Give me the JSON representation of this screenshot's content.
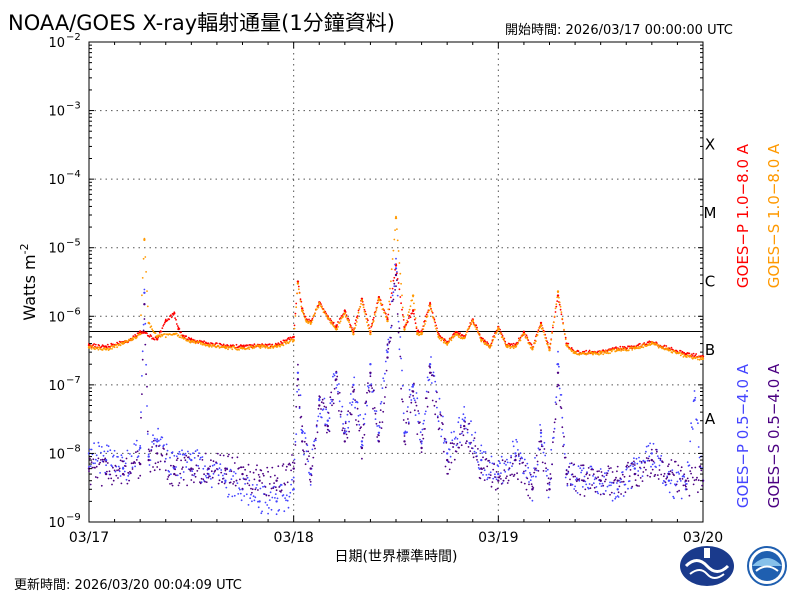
{
  "header": {
    "title": "NOAA/GOES X-ray輻射通量(1分鐘資料)",
    "start_time": "開始時間:  2026/03/17 00:00:00 UTC"
  },
  "footer": {
    "updated": "更新時間:  2026/03/20 00:04:09 UTC"
  },
  "logos": [
    {
      "name": "cwa-logo",
      "color": "#1a3a8c"
    },
    {
      "name": "noaa-logo",
      "color": "#1f5fb0"
    }
  ],
  "chart_data": {
    "type": "scatter",
    "xlabel": "日期(世界標準時間)",
    "ylabel": "Watts m",
    "ylabel_sup": "-2",
    "log_scale_y": true,
    "ylim": [
      1e-09,
      0.01
    ],
    "xlim": [
      "03/17 00:00",
      "03/20 00:00"
    ],
    "x_ticks": [
      "03/17",
      "03/18",
      "03/19",
      "03/20"
    ],
    "y_ticks": [
      {
        "value": 1e-09,
        "base": "10",
        "exp": "−9"
      },
      {
        "value": 1e-08,
        "base": "10",
        "exp": "−8"
      },
      {
        "value": 1e-07,
        "base": "10",
        "exp": "−7"
      },
      {
        "value": 1e-06,
        "base": "10",
        "exp": "−6"
      },
      {
        "value": 1e-05,
        "base": "10",
        "exp": "−5"
      },
      {
        "value": 0.0001,
        "base": "10",
        "exp": "−4"
      },
      {
        "value": 0.001,
        "base": "10",
        "exp": "−3"
      },
      {
        "value": 0.01,
        "base": "10",
        "exp": "−2"
      }
    ],
    "grid": true,
    "flare_classes": [
      {
        "label": "A",
        "value": 3.2e-08
      },
      {
        "label": "B",
        "value": 3.2e-07
      },
      {
        "label": "C",
        "value": 3.2e-06
      },
      {
        "label": "M",
        "value": 3.2e-05
      },
      {
        "label": "X",
        "value": 0.00032
      }
    ],
    "threshold_line": {
      "value": 6e-07
    },
    "legend": [
      {
        "label": "GOES−P 1.0−8.0 A",
        "color": "#ff0000"
      },
      {
        "label": "GOES−S 1.0−8.0 A",
        "color": "#ff9900"
      },
      {
        "label": "GOES−P 0.5−4.0 A",
        "color": "#4444ff"
      },
      {
        "label": "GOES−S 0.5−4.0 A",
        "color": "#4b0082"
      }
    ],
    "series": [
      {
        "name": "GOES−P 1.0−8.0 A",
        "color": "#ff0000",
        "x_hours": [
          0,
          2,
          4,
          5,
          6,
          8,
          9,
          10,
          10.5,
          11,
          12,
          14,
          16,
          18,
          20,
          22,
          24,
          24.5,
          25,
          25.5,
          26,
          27,
          28,
          29,
          30,
          31,
          32,
          33,
          34,
          35,
          36,
          37,
          38,
          38.5,
          39,
          40,
          41,
          42,
          43,
          44,
          45,
          46,
          47,
          48,
          49,
          50,
          51,
          52,
          53,
          54,
          55,
          56,
          57,
          58,
          59,
          60,
          62,
          64,
          66,
          68,
          70,
          72
        ],
        "values": [
          3.8e-07,
          3.6e-07,
          4.2e-07,
          4.6e-07,
          6e-07,
          4.6e-07,
          8.5e-07,
          1.1e-06,
          6.5e-07,
          5.2e-07,
          4.5e-07,
          4e-07,
          3.7e-07,
          3.6e-07,
          3.8e-07,
          3.8e-07,
          5e-07,
          3.2e-06,
          1.3e-06,
          9e-07,
          8.5e-07,
          1.6e-06,
          1e-06,
          7e-07,
          1.2e-06,
          6e-07,
          1.8e-06,
          6e-07,
          1.9e-06,
          9e-07,
          5.5e-06,
          7e-07,
          1.2e-06,
          6e-07,
          6e-07,
          1.5e-06,
          5.5e-07,
          4.2e-07,
          5.8e-07,
          5e-07,
          9e-07,
          4.8e-07,
          3.7e-07,
          7e-07,
          3.8e-07,
          3.8e-07,
          5.8e-07,
          3.5e-07,
          8e-07,
          3.4e-07,
          2e-06,
          4e-07,
          3e-07,
          3e-07,
          3e-07,
          3e-07,
          3.4e-07,
          3.6e-07,
          4.2e-07,
          3.4e-07,
          2.8e-07,
          2.6e-07
        ]
      },
      {
        "name": "GOES−S 1.0−8.0 A",
        "color": "#ff9900",
        "x_hours": [
          0,
          2,
          4,
          5,
          6,
          6.5,
          7,
          8,
          10,
          12,
          14,
          16,
          18,
          20,
          22,
          24,
          24.5,
          25,
          25.5,
          26,
          27,
          28,
          29,
          30,
          31,
          32,
          33,
          34,
          35,
          36,
          37,
          38,
          38.5,
          39,
          40,
          41,
          42,
          43,
          44,
          45,
          46,
          47,
          48,
          49,
          50,
          51,
          52,
          53,
          54,
          55,
          56,
          57,
          58,
          59,
          60,
          62,
          64,
          66,
          68,
          70,
          72
        ],
        "values": [
          3.5e-07,
          3.3e-07,
          4e-07,
          4.5e-07,
          5.5e-07,
          1.3e-05,
          8e-07,
          5e-07,
          5.5e-07,
          4.3e-07,
          3.8e-07,
          3.5e-07,
          3.4e-07,
          3.6e-07,
          3.6e-07,
          4.5e-07,
          3e-06,
          1.2e-06,
          8.5e-07,
          8e-07,
          1.5e-06,
          9.5e-07,
          6.5e-07,
          1.1e-06,
          5.5e-07,
          1.7e-06,
          5.5e-07,
          1.8e-06,
          8.5e-07,
          2.7e-05,
          6.5e-07,
          2e-06,
          5.5e-07,
          5.5e-07,
          1.4e-06,
          5e-07,
          4e-07,
          5.5e-07,
          4.8e-07,
          8.5e-07,
          4.5e-07,
          3.5e-07,
          6.5e-07,
          3.6e-07,
          3.6e-07,
          5.5e-07,
          3.3e-07,
          7.5e-07,
          3.2e-07,
          2.3e-06,
          3.8e-07,
          2.9e-07,
          2.9e-07,
          2.9e-07,
          2.9e-07,
          3.2e-07,
          3.4e-07,
          4e-07,
          3.2e-07,
          2.6e-07,
          2.4e-07
        ]
      },
      {
        "name": "GOES−P 0.5−4.0 A",
        "color": "#4444ff",
        "x_hours": [
          0,
          2,
          4,
          6,
          6.5,
          7,
          8,
          10,
          12,
          14,
          16,
          18,
          20,
          22,
          24,
          24.5,
          25,
          26,
          27,
          28,
          29,
          30,
          31,
          32,
          33,
          34,
          35,
          36,
          37,
          38,
          39,
          40,
          42,
          44,
          46,
          48,
          50,
          52,
          53,
          54,
          55,
          56,
          58,
          60,
          62,
          64,
          66,
          68,
          70,
          71,
          72
        ],
        "values": [
          1e-08,
          8e-09,
          6e-09,
          1.2e-08,
          2.2e-06,
          9e-09,
          1.5e-08,
          6e-09,
          8e-09,
          5e-09,
          4e-09,
          3e-09,
          2e-09,
          2e-09,
          3e-09,
          1.5e-07,
          2e-08,
          5e-09,
          6e-08,
          3e-08,
          1.5e-07,
          2e-08,
          1e-07,
          1.5e-08,
          2e-07,
          2e-08,
          3e-07,
          5e-06,
          2e-08,
          1e-07,
          1.5e-08,
          2e-07,
          1e-08,
          3e-08,
          8e-09,
          5e-09,
          1e-08,
          3e-09,
          2e-08,
          3e-09,
          2e-07,
          5e-09,
          4e-09,
          4e-09,
          3e-09,
          6e-09,
          1e-08,
          4e-09,
          3e-09,
          6e-08,
          4e-09
        ]
      },
      {
        "name": "GOES−S 0.5−4.0 A",
        "color": "#4b0082",
        "x_hours": [
          0,
          2,
          4,
          6,
          6.5,
          7,
          8,
          10,
          12,
          14,
          16,
          18,
          20,
          22,
          24,
          24.5,
          25,
          26,
          27,
          28,
          29,
          30,
          31,
          32,
          33,
          34,
          35,
          36,
          37,
          38,
          39,
          40,
          42,
          44,
          46,
          48,
          50,
          52,
          53,
          54,
          55,
          56,
          58,
          60,
          62,
          64,
          66,
          68,
          70,
          72
        ],
        "values": [
          6e-09,
          5e-09,
          5e-09,
          7e-09,
          1.5e-06,
          8e-09,
          1e-08,
          5e-09,
          6e-09,
          6e-09,
          6e-09,
          5e-09,
          4e-09,
          4e-09,
          6e-09,
          1.2e-07,
          1.5e-08,
          6e-09,
          5e-08,
          2.5e-08,
          1.2e-07,
          1.5e-08,
          8e-08,
          1.2e-08,
          1.5e-07,
          1.5e-08,
          2.5e-07,
          4e-06,
          1.5e-08,
          8e-08,
          1.2e-08,
          1.5e-07,
          8e-09,
          2.5e-08,
          6e-09,
          4e-09,
          8e-09,
          3e-09,
          1.5e-08,
          3e-09,
          1.5e-07,
          5e-09,
          4e-09,
          4e-09,
          4e-09,
          5e-09,
          8e-09,
          5e-09,
          4e-09,
          4e-09
        ]
      }
    ]
  }
}
